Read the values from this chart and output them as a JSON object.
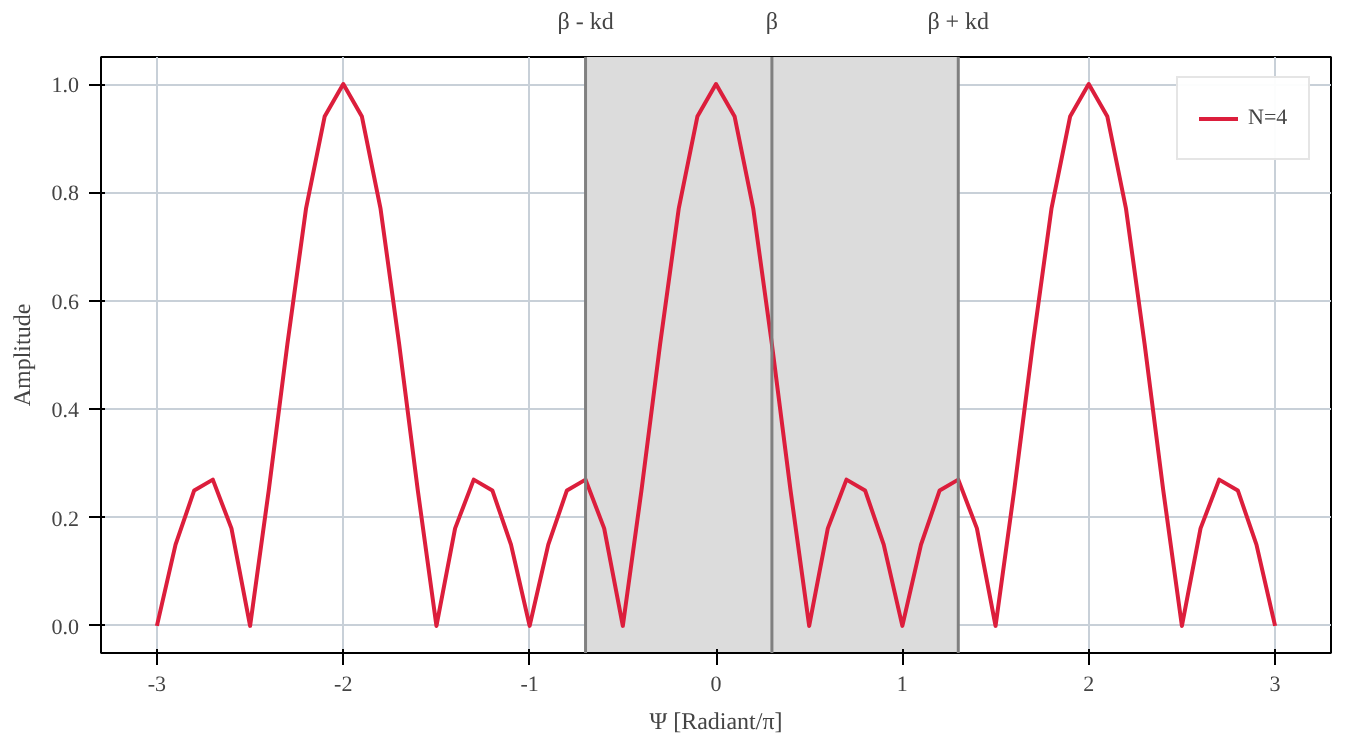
{
  "chart_data": {
    "type": "line",
    "xlabel": "Ψ [Radiant/π]",
    "ylabel": "Amplitude",
    "x": [
      -3.0,
      -2.9,
      -2.8,
      -2.7,
      -2.6,
      -2.5,
      -2.4,
      -2.3,
      -2.2,
      -2.1,
      -2.0,
      -1.9,
      -1.8,
      -1.7,
      -1.6,
      -1.5,
      -1.4,
      -1.3,
      -1.2,
      -1.1,
      -1.0,
      -0.9,
      -0.8,
      -0.7,
      -0.6,
      -0.5,
      -0.4,
      -0.3,
      -0.2,
      -0.1,
      0.0,
      0.1,
      0.2,
      0.3,
      0.4,
      0.5,
      0.6,
      0.7,
      0.8,
      0.9,
      1.0,
      1.1,
      1.2,
      1.3,
      1.4,
      1.5,
      1.6,
      1.7,
      1.8,
      1.9,
      2.0,
      2.1,
      2.2,
      2.3,
      2.4,
      2.5,
      2.6,
      2.7,
      2.8,
      2.9,
      3.0
    ],
    "series": [
      {
        "name": "N=4",
        "color": "#dc1e3c",
        "values": [
          0,
          0.15,
          0.25,
          0.27,
          0.18,
          0,
          0.25,
          0.52,
          0.77,
          0.94,
          1.0,
          0.94,
          0.77,
          0.52,
          0.25,
          0,
          0.18,
          0.27,
          0.25,
          0.15,
          0,
          0.15,
          0.25,
          0.27,
          0.18,
          0,
          0.25,
          0.52,
          0.77,
          0.94,
          1.0,
          0.94,
          0.77,
          0.52,
          0.25,
          0,
          0.18,
          0.27,
          0.25,
          0.15,
          0,
          0.15,
          0.25,
          0.27,
          0.18,
          0,
          0.25,
          0.52,
          0.77,
          0.94,
          1.0,
          0.94,
          0.77,
          0.52,
          0.25,
          0,
          0.18,
          0.27,
          0.25,
          0.15,
          0
        ]
      }
    ],
    "xlim": [
      -3.3,
      3.3
    ],
    "ylim": [
      -0.05,
      1.05
    ],
    "xticks": [
      -3,
      -2,
      -1,
      0,
      1,
      2,
      3
    ],
    "yticks": [
      {
        "value": 0,
        "label": "0.0"
      },
      {
        "value": 0.2,
        "label": "0.2"
      },
      {
        "value": 0.4,
        "label": "0.4"
      },
      {
        "value": 0.6,
        "label": "0.6"
      },
      {
        "value": 0.8,
        "label": "0.8"
      },
      {
        "value": 1,
        "label": "1.0"
      }
    ],
    "ref_lines": [
      {
        "axis": "x",
        "value": -0.7,
        "label": "β - kd",
        "color": "#808080"
      },
      {
        "axis": "x",
        "value": 0.3,
        "label": "β",
        "color": "#808080"
      },
      {
        "axis": "x",
        "value": 1.3,
        "label": "β + kd",
        "color": "#808080"
      }
    ],
    "bands": [
      {
        "axis": "x",
        "from": -0.7,
        "to": 1.3,
        "color": "#dcdcdc"
      }
    ],
    "grid": true,
    "legend": "top right",
    "line_style": "solid",
    "marker": "none"
  }
}
